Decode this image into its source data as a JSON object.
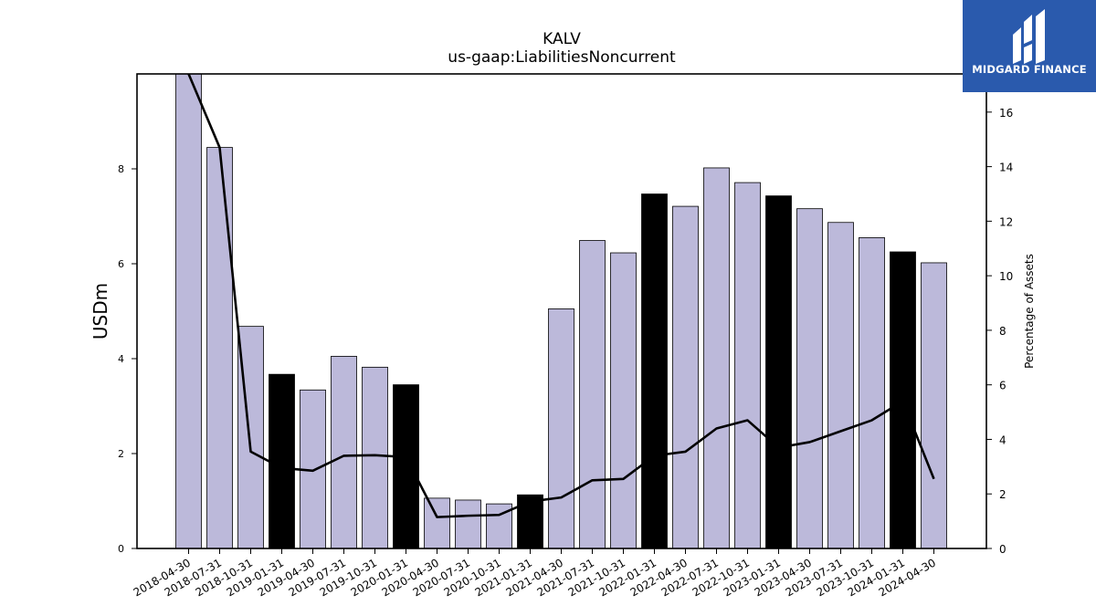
{
  "brand": {
    "name": "MIDGARD FINANCE",
    "bg_color": "#2a5aad"
  },
  "colors": {
    "normal_bar": "#bcb9da",
    "highlight_bar": "#000000",
    "line": "#000000"
  },
  "chart_data": {
    "type": "bar",
    "title": "KALV",
    "subtitle": "us-gaap:LiabilitiesNoncurrent",
    "ylabel": "USDm",
    "y2label": "Percentage of Assets",
    "ylim": [
      0,
      10
    ],
    "y2lim": [
      0,
      17.4
    ],
    "yticks": [
      0,
      2,
      4,
      6,
      8
    ],
    "y2ticks": [
      0,
      2,
      4,
      6,
      8,
      10,
      12,
      14,
      16
    ],
    "categories": [
      "2018-04-30",
      "2018-07-31",
      "2018-10-31",
      "2019-01-31",
      "2019-04-30",
      "2019-07-31",
      "2019-10-31",
      "2020-01-31",
      "2020-04-30",
      "2020-07-31",
      "2020-10-31",
      "2021-01-31",
      "2021-04-30",
      "2021-07-31",
      "2021-10-31",
      "2022-01-31",
      "2022-04-30",
      "2022-07-31",
      "2022-10-31",
      "2023-01-31",
      "2023-04-30",
      "2023-07-31",
      "2023-10-31",
      "2024-01-31",
      "2024-04-30"
    ],
    "series": [
      {
        "type": "bar",
        "values": [
          10.0,
          8.45,
          4.68,
          3.67,
          3.34,
          4.05,
          3.82,
          3.45,
          1.06,
          1.02,
          0.94,
          1.13,
          5.05,
          6.49,
          6.23,
          7.47,
          7.21,
          8.02,
          7.71,
          7.43,
          7.16,
          6.87,
          6.55,
          6.25,
          6.02
        ]
      },
      {
        "type": "line",
        "axis": "right",
        "values": [
          17.4,
          14.7,
          3.55,
          2.95,
          2.85,
          3.4,
          3.42,
          3.35,
          1.15,
          1.2,
          1.23,
          1.72,
          1.87,
          2.5,
          2.55,
          3.4,
          3.55,
          4.4,
          4.7,
          3.7,
          3.9,
          4.3,
          4.7,
          5.4,
          2.55
        ]
      }
    ],
    "highlighted": [
      false,
      false,
      false,
      true,
      false,
      false,
      false,
      true,
      false,
      false,
      false,
      true,
      false,
      false,
      false,
      true,
      false,
      false,
      false,
      true,
      false,
      false,
      false,
      true,
      false
    ],
    "grid": false,
    "legend": "none"
  }
}
